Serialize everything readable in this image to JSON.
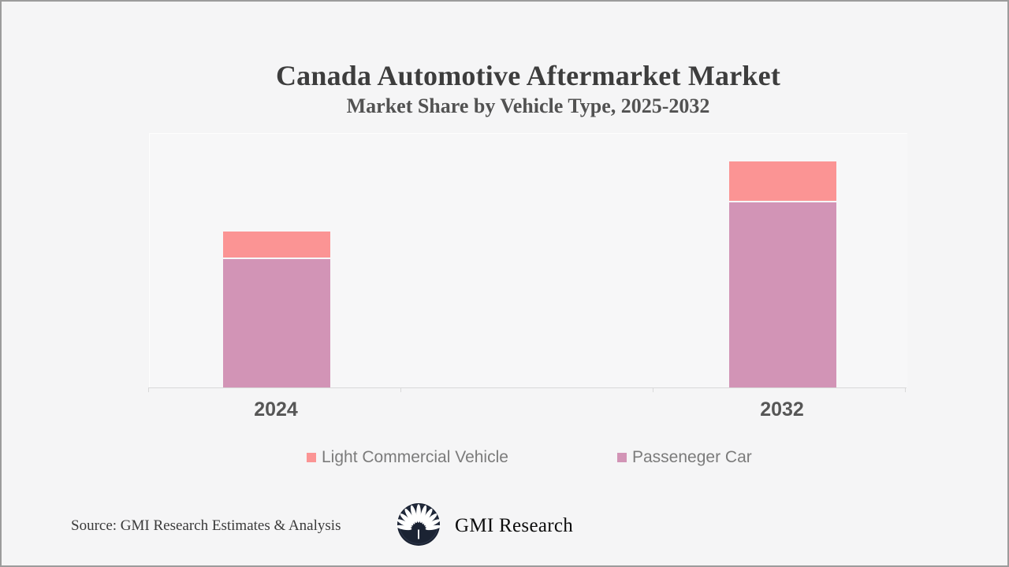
{
  "window": {
    "background": "#f5f5f6",
    "border_color": "#9c9c9c"
  },
  "header": {
    "title": "Canada Automotive Aftermarket Market",
    "subtitle": "Market Share by Vehicle Type, 2025-2032"
  },
  "chart_data": {
    "type": "bar",
    "stacked": true,
    "orientation": "vertical",
    "title": "Canada Automotive Aftermarket Market",
    "subtitle": "Market Share by Vehicle Type, 2025-2032",
    "categories": [
      "2024",
      "2032"
    ],
    "series": [
      {
        "name": "Light Commercial Vehicle",
        "color": "#fb9494",
        "stack_position": "top",
        "values_pct_of_plot_height": [
          10.2,
          15.4
        ]
      },
      {
        "name": "Passeneger Car",
        "color": "#d294b6",
        "stack_position": "bottom",
        "values_pct_of_plot_height": [
          50.9,
          73.1
        ]
      }
    ],
    "value_axis": {
      "visible": false,
      "note": "no numeric scale or data labels shown; segment heights estimated from pixels as percent of plot height"
    },
    "category_axis": {
      "line_color": "#d9d9d9",
      "tick_count": 4
    },
    "gridlines": false,
    "legend_position": "bottom"
  },
  "legend": {
    "items": [
      {
        "label": "Light Commercial Vehicle",
        "color": "#fb9494",
        "marker": "square"
      },
      {
        "label": "Passeneger Car",
        "color": "#d294b6",
        "marker": "square"
      }
    ]
  },
  "footer": {
    "source": "Source: GMI Research Estimates & Analysis",
    "brand_name": "GMI Research",
    "logo_icon": "palm-fan-icon",
    "logo_colors": {
      "circle": "#1b2333",
      "glyph": "#ffffff"
    }
  }
}
